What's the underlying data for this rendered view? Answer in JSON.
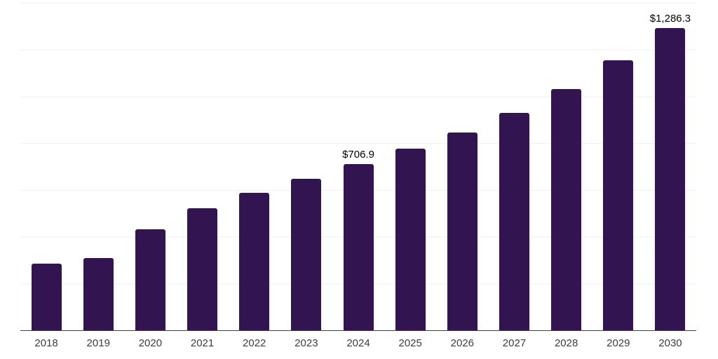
{
  "chart": {
    "background_color": "#ffffff",
    "bar_color": "#321450",
    "gridline_color": "#f0eff2",
    "axis_line_color": "#3f3f3f",
    "year_label_color": "#3d3d3d",
    "value_label_color": "#000000"
  },
  "chart_data": {
    "type": "bar",
    "title": "",
    "xlabel": "",
    "ylabel": "",
    "categories": [
      "2018",
      "2019",
      "2020",
      "2021",
      "2022",
      "2023",
      "2024",
      "2025",
      "2026",
      "2027",
      "2028",
      "2029",
      "2030"
    ],
    "values": [
      284,
      308,
      431,
      518,
      585,
      645,
      706.9,
      772,
      842,
      926,
      1026,
      1150,
      1286.3
    ],
    "value_labels": [
      "",
      "",
      "",
      "",
      "",
      "",
      "$706.9",
      "",
      "",
      "",
      "",
      "",
      "$1,286.3"
    ],
    "ylim": [
      0,
      1394
    ],
    "grid": "horizontal",
    "gridline_intervals": 7,
    "legend": "none",
    "y_axis_tick_labels": "none"
  }
}
